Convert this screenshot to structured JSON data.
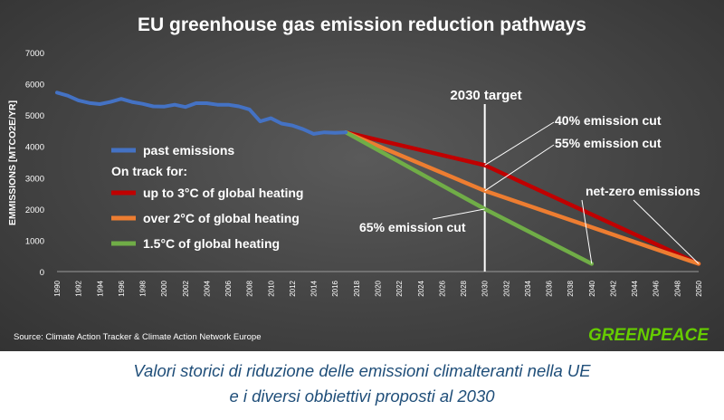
{
  "chart_data": {
    "type": "line",
    "title": "EU greenhouse gas emission reduction pathways",
    "ylabel": "EMMISSIONS [MTCO2E/YR]",
    "xlabel": "",
    "ylim": [
      0,
      7000
    ],
    "xlim": [
      1990,
      2050
    ],
    "grid": false,
    "y_ticks": [
      "0",
      "1000",
      "2000",
      "3000",
      "4000",
      "5000",
      "6000",
      "7000"
    ],
    "x_ticks": [
      "1990",
      "1992",
      "1994",
      "1996",
      "1998",
      "2000",
      "2002",
      "2004",
      "2006",
      "2008",
      "2010",
      "2012",
      "2014",
      "2016",
      "2018",
      "2020",
      "2022",
      "2024",
      "2026",
      "2028",
      "2030",
      "2032",
      "2034",
      "2036",
      "2038",
      "2040",
      "2042",
      "2044",
      "2046",
      "2048",
      "2050"
    ],
    "legend_heading": "On track for:",
    "legend_position": "left",
    "series": [
      {
        "name": "past emissions",
        "color": "#4472c4",
        "x": [
          1990,
          1991,
          1992,
          1993,
          1994,
          1995,
          1996,
          1997,
          1998,
          1999,
          2000,
          2001,
          2002,
          2003,
          2004,
          2005,
          2006,
          2007,
          2008,
          2009,
          2010,
          2011,
          2012,
          2013,
          2014,
          2015,
          2016,
          2017
        ],
        "y": [
          5720,
          5620,
          5470,
          5390,
          5350,
          5420,
          5520,
          5420,
          5360,
          5280,
          5270,
          5330,
          5260,
          5380,
          5380,
          5330,
          5330,
          5280,
          5180,
          4800,
          4900,
          4730,
          4670,
          4550,
          4400,
          4450,
          4430,
          4450
        ]
      },
      {
        "name": "up to 3°C of global heating",
        "color": "#c00000",
        "x": [
          2017,
          2030,
          2050
        ],
        "y": [
          4450,
          3400,
          250
        ]
      },
      {
        "name": "over 2°C of global heating",
        "color": "#ed7d31",
        "x": [
          2017,
          2030,
          2050
        ],
        "y": [
          4450,
          2580,
          250
        ]
      },
      {
        "name": "1.5°C of global heating",
        "color": "#70ad47",
        "x": [
          2017,
          2030,
          2040
        ],
        "y": [
          4450,
          2000,
          250
        ]
      }
    ],
    "annotations": [
      {
        "text": "2030 target",
        "type": "vline",
        "x": 2030
      },
      {
        "text": "40% emission cut",
        "points_to": {
          "x": 2030,
          "y": 3400
        }
      },
      {
        "text": "55% emission cut",
        "points_to": {
          "x": 2030,
          "y": 2580
        }
      },
      {
        "text": "65% emission cut",
        "points_to": {
          "x": 2030,
          "y": 2000
        }
      },
      {
        "text": "net-zero emissions",
        "points_to": {
          "x": 2050,
          "y": 250
        }
      }
    ],
    "source": "Source: Climate Action Tracker & Climate Action Network Europe",
    "logo": "GREENPEACE"
  },
  "caption": {
    "line1": "Valori storici di riduzione delle emissioni climalteranti nella UE",
    "line2": "e i diversi obbiettivi proposti al 2030"
  },
  "colors": {
    "background": "#444444",
    "past": "#4472c4",
    "red": "#c00000",
    "orange": "#ed7d31",
    "green": "#70ad47",
    "logo": "#66cc00"
  }
}
